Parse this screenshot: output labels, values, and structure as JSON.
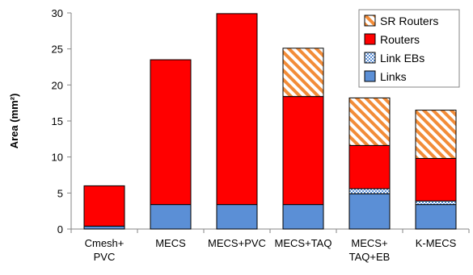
{
  "chart_data": {
    "type": "bar",
    "stacked": true,
    "title": "",
    "xlabel": "",
    "ylabel": "Area (mm²)",
    "ylim": [
      0,
      30
    ],
    "yticks": [
      0,
      5,
      10,
      15,
      20,
      25,
      30
    ],
    "grid": false,
    "legend_position": "top-right",
    "categories": [
      [
        "Cmesh+",
        "PVC"
      ],
      [
        "MECS"
      ],
      [
        "MECS+PVC"
      ],
      [
        "MECS+TAQ"
      ],
      [
        "MECS+",
        "TAQ+EB"
      ],
      [
        "K-MECS"
      ]
    ],
    "series": [
      {
        "name": "Links",
        "color": "#5b8fd6",
        "pattern": "solid",
        "values": [
          0.4,
          3.4,
          3.4,
          3.4,
          4.9,
          3.4
        ]
      },
      {
        "name": "Link EBs",
        "color": "#5b8fd6",
        "pattern": "dots",
        "values": [
          0,
          0,
          0,
          0,
          0.7,
          0.5
        ]
      },
      {
        "name": "Routers",
        "color": "#ff0000",
        "pattern": "solid",
        "values": [
          5.6,
          20.1,
          26.5,
          15.0,
          6.0,
          5.9
        ]
      },
      {
        "name": "SR Routers",
        "color": "#f28c38",
        "pattern": "diagonal",
        "values": [
          0,
          0,
          0,
          6.7,
          6.6,
          6.7
        ]
      }
    ],
    "legend_order": [
      "SR Routers",
      "Routers",
      "Link EBs",
      "Links"
    ]
  }
}
